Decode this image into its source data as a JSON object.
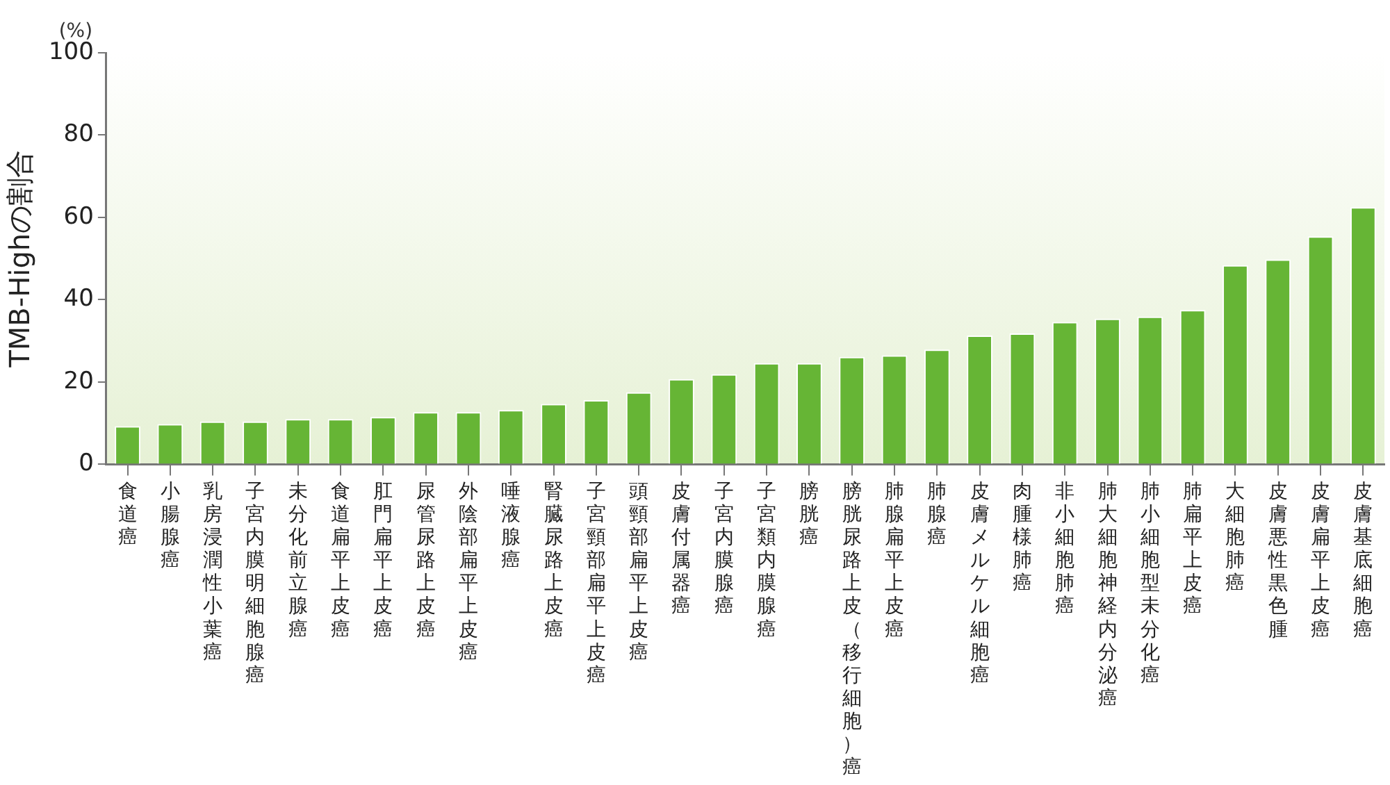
{
  "chart_data": {
    "type": "bar",
    "ylabel": "TMB-Highの割合",
    "annotations": [
      "(%)"
    ],
    "categories": [
      "食道癌",
      "小腸腺癌",
      "乳房浸潤性小葉癌",
      "子宮内膜明細胞腺癌",
      "未分化前立腺癌",
      "食道扁平上皮癌",
      "肛門扁平上皮癌",
      "尿管尿路上皮癌",
      "外陰部扁平上皮癌",
      "唾液腺癌",
      "腎臓尿路上皮癌",
      "子宮頸部扁平上皮癌",
      "頭頸部扁平上皮癌",
      "皮膚付属器癌",
      "子宮内膜腺癌",
      "子宮類内膜腺癌",
      "膀胱癌",
      "膀胱尿路上皮（移行細胞）癌",
      "肺腺扁平上皮癌",
      "肺腺癌",
      "皮膚メルケル細胞癌",
      "肉腫様肺癌",
      "非小細胞肺癌",
      "肺大細胞神経内分泌癌",
      "肺小細胞型未分化癌",
      "肺扁平上皮癌",
      "大細胞肺癌",
      "皮膚悪性黒色腫",
      "皮膚扁平上皮癌",
      "皮膚基底細胞癌"
    ],
    "values": [
      9.3,
      9.8,
      10.4,
      10.4,
      11,
      11,
      11.5,
      12.7,
      12.7,
      13.2,
      14.7,
      15.6,
      17.5,
      20.7,
      21.9,
      24.6,
      24.6,
      26.1,
      26.5,
      27.9,
      31.3,
      31.8,
      34.6,
      35.4,
      35.9,
      37.5,
      48.4,
      49.8,
      55.4,
      62.5
    ],
    "color": "#66b535",
    "ylim": [
      0,
      100
    ],
    "yticks": [
      0,
      20,
      40,
      60,
      80,
      100
    ],
    "grid": false,
    "legend": false
  }
}
